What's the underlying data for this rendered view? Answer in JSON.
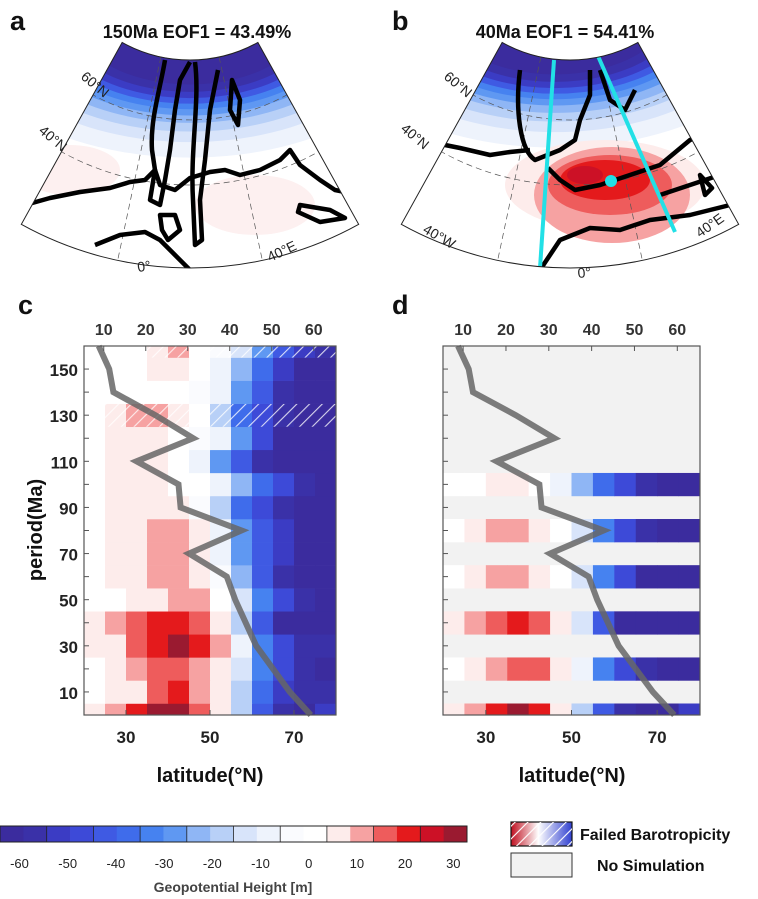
{
  "maps": [
    {
      "panel": "a",
      "title": "150Ma  EOF1 = 43.49%",
      "labels": [
        "60°N",
        "40°N",
        "0°",
        "40°E"
      ]
    },
    {
      "panel": "b",
      "title": "40Ma  EOF1 = 54.41%",
      "labels": [
        "60°N",
        "40°N",
        "40°W",
        "0°",
        "40°E"
      ],
      "highlight_color": "#22e0e6"
    }
  ],
  "chart_data": [
    {
      "panel": "c",
      "type": "heatmap",
      "xlabel": "latitude(°N)",
      "ylabel": "period(Ma)",
      "xlim": [
        20,
        80
      ],
      "ylim": [
        0,
        160
      ],
      "xticks": [
        30,
        50,
        70
      ],
      "yticks": [
        10,
        30,
        50,
        70,
        90,
        110,
        130,
        150
      ],
      "top_axis": {
        "ticks": [
          10,
          20,
          30,
          40,
          50,
          60
        ],
        "xlim": [
          5.3,
          65.3
        ]
      },
      "periods": [
        0,
        10,
        20,
        30,
        40,
        50,
        60,
        70,
        80,
        90,
        100,
        110,
        120,
        130,
        140,
        150,
        160
      ],
      "latitude_bins": [
        22.5,
        27.5,
        32.5,
        37.5,
        42.5,
        47.5,
        52.5,
        57.5,
        62.5,
        67.5,
        72.5,
        77.5
      ],
      "values": [
        [
          7,
          12,
          22,
          30,
          30,
          18,
          7,
          -20,
          -45,
          -58,
          -62,
          -55
        ],
        [
          0,
          7,
          7,
          17,
          22,
          12,
          7,
          -20,
          -40,
          -55,
          -58,
          -60
        ],
        [
          0,
          7,
          12,
          17,
          17,
          12,
          7,
          -15,
          -35,
          -50,
          -58,
          -62
        ],
        [
          7,
          7,
          15,
          22,
          30,
          22,
          12,
          -10,
          -35,
          -50,
          -58,
          -60
        ],
        [
          7,
          12,
          15,
          22,
          24,
          18,
          7,
          -20,
          -45,
          -62,
          -65,
          -65
        ],
        [
          0,
          0,
          7,
          7,
          12,
          12,
          0,
          -15,
          -35,
          -50,
          -58,
          -62
        ],
        [
          0,
          7,
          7,
          12,
          12,
          7,
          -5,
          -25,
          -45,
          -58,
          -62,
          -65
        ],
        [
          0,
          7,
          7,
          12,
          12,
          7,
          -10,
          -30,
          -45,
          -55,
          -62,
          -65
        ],
        [
          0,
          7,
          7,
          12,
          12,
          7,
          -10,
          -30,
          -45,
          -55,
          -62,
          -65
        ],
        [
          0,
          7,
          7,
          7,
          7,
          -2,
          -20,
          -40,
          -50,
          -58,
          -62,
          -65
        ],
        [
          0,
          7,
          7,
          7,
          0,
          0,
          -10,
          -25,
          -40,
          -50,
          -58,
          -62
        ],
        [
          0,
          7,
          7,
          7,
          0,
          -10,
          -30,
          -45,
          -58,
          -65,
          -65,
          -65
        ],
        [
          0,
          7,
          7,
          7,
          0,
          -2,
          -10,
          -30,
          -50,
          -62,
          -65,
          -65
        ],
        [
          0,
          7,
          12,
          12,
          7,
          0,
          -20,
          -40,
          -50,
          -60,
          -62,
          -65
        ],
        [
          0,
          0,
          0,
          0,
          0,
          -2,
          -10,
          -30,
          -45,
          -58,
          -62,
          -65
        ],
        [
          0,
          0,
          0,
          7,
          7,
          0,
          -10,
          -25,
          -40,
          -55,
          -62,
          -65
        ],
        [
          0,
          0,
          0,
          7,
          12,
          0,
          -5,
          -15,
          -30,
          -45,
          -55,
          -60
        ]
      ],
      "failed_barotropicity_periods": [
        130,
        160
      ],
      "line": {
        "latitude": [
          74,
          69,
          65,
          61,
          58.5,
          56,
          54,
          45,
          57.5,
          43,
          42.5,
          32.5,
          46,
          37,
          27,
          26,
          23.5
        ],
        "period": [
          0,
          10,
          20,
          30,
          40,
          50,
          60,
          70,
          80,
          90,
          100,
          110,
          120,
          130,
          140,
          150,
          160
        ],
        "color": "#666666"
      }
    },
    {
      "panel": "d",
      "type": "heatmap",
      "xlabel": "latitude(°N)",
      "xlim": [
        20,
        80
      ],
      "ylim": [
        0,
        160
      ],
      "xticks": [
        30,
        50,
        70
      ],
      "top_axis": {
        "ticks": [
          10,
          20,
          30,
          40,
          50,
          60
        ],
        "xlim": [
          5.3,
          65.3
        ]
      },
      "periods": [
        0,
        10,
        20,
        30,
        40,
        50,
        60,
        70,
        80,
        90,
        100,
        110,
        120,
        130,
        140,
        150,
        160
      ],
      "latitude_bins": [
        22.5,
        27.5,
        32.5,
        37.5,
        42.5,
        47.5,
        52.5,
        57.5,
        62.5,
        67.5,
        72.5,
        77.5
      ],
      "values": [
        [
          7,
          12,
          24,
          30,
          22,
          7,
          -20,
          -45,
          -58,
          -62,
          -62,
          -55
        ],
        null,
        [
          0,
          7,
          12,
          17,
          17,
          7,
          -10,
          -35,
          -50,
          -58,
          -62,
          -65
        ],
        null,
        [
          7,
          12,
          15,
          22,
          15,
          7,
          -15,
          -45,
          -62,
          -65,
          -65,
          -65
        ],
        null,
        [
          0,
          7,
          12,
          12,
          7,
          0,
          -15,
          -35,
          -50,
          -62,
          -65,
          -65
        ],
        null,
        [
          0,
          7,
          12,
          12,
          7,
          0,
          -15,
          -35,
          -50,
          -58,
          -62,
          -65
        ],
        null,
        [
          0,
          0,
          7,
          7,
          0,
          -10,
          -25,
          -40,
          -50,
          -58,
          -62,
          -65
        ],
        null,
        null,
        null,
        null,
        null,
        null
      ],
      "line": {
        "latitude": [
          74,
          69,
          65,
          61,
          58.5,
          56,
          54,
          45,
          57.5,
          43,
          42.5,
          32.5,
          46,
          37,
          27,
          26,
          23.5
        ],
        "period": [
          0,
          10,
          20,
          30,
          40,
          50,
          60,
          70,
          80,
          90,
          100,
          110,
          120,
          130,
          140,
          150,
          160
        ],
        "color": "#666666"
      }
    }
  ],
  "colorbar": {
    "label": "Geopotential Height [m]",
    "range": [
      -65,
      35
    ],
    "ticks": [
      -60,
      -50,
      -40,
      -30,
      -20,
      -10,
      0,
      10,
      20,
      30
    ],
    "colors": [
      "#3b2c9e",
      "#3a31a8",
      "#3b3cc4",
      "#3d4ad8",
      "#3f5ae3",
      "#3f6ceb",
      "#4682f0",
      "#5f98f2",
      "#8fb6f5",
      "#b8d0f7",
      "#d8e4fa",
      "#eef3fc",
      "#fafbfe",
      "#ffffff",
      "#fdeceb",
      "#f6a2a2",
      "#ee5c5c",
      "#e41a1c",
      "#cc1126",
      "#9a1a30"
    ]
  },
  "legend": {
    "failed": "Failed Barotropicity",
    "no_sim": "No Simulation",
    "no_sim_color": "#f2f2f2"
  }
}
